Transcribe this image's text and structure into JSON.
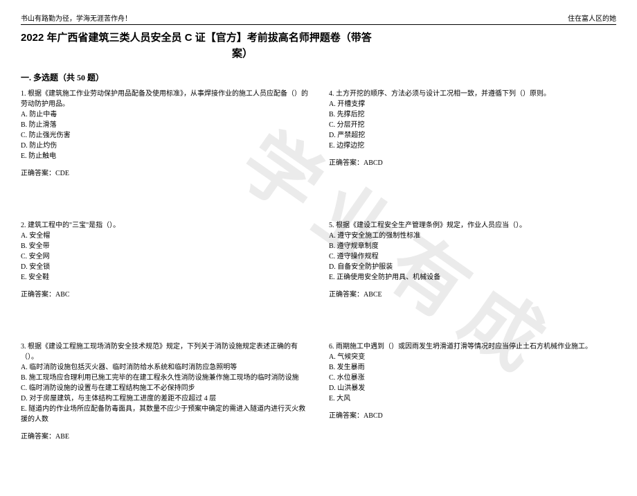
{
  "header": {
    "left": "书山有路勤为径，学海无涯苦作舟！",
    "right": "住在富人区的她"
  },
  "watermark": "学业有成",
  "title_line1": "2022 年广西省建筑三类人员安全员 C 证【官方】考前拔高名师押题卷（带答",
  "title_line2": "案）",
  "section": "一. 多选题（共 50 题）",
  "questions": [
    {
      "stem": "1. 根据《建筑施工作业劳动保护用品配备及使用标准》，从事焊接作业的施工人员应配备（）的劳动防护用品。",
      "opts": [
        "A. 防止中毒",
        "B. 防止滑落",
        "C. 防止强光伤害",
        "D. 防止灼伤",
        "E. 防止触电"
      ],
      "ans": "正确答案：CDE"
    },
    {
      "stem": "4. 土方开挖的顺序、方法必须与设计工况相一致，并遵循下列（）原则。",
      "opts": [
        "A. 开槽支撑",
        "B. 先撑后挖",
        "C. 分层开挖",
        "D. 严禁超挖",
        "E. 边撑边挖"
      ],
      "ans": "正确答案：ABCD"
    },
    {
      "stem": "2. 建筑工程中的\"三宝\"是指（）。",
      "opts": [
        "A. 安全帽",
        "B. 安全带",
        "C. 安全网",
        "D. 安全锁",
        "E. 安全鞋"
      ],
      "ans": "正确答案：ABC"
    },
    {
      "stem": "5. 根据《建设工程安全生产管理条例》规定，作业人员应当（）。",
      "opts": [
        "A. 遵守安全施工的强制性标准",
        "B. 遵守规章制度",
        "C. 遵守操作规程",
        "D. 自备安全防护服装",
        "E. 正确使用安全防护用具、机械设备"
      ],
      "ans": "正确答案：ABCE"
    },
    {
      "stem": "3. 根据《建设工程施工现场消防安全技术规范》规定，下列关于消防设施规定表述正确的有（）。",
      "opts": [
        "A. 临时消防设施包括灭火器、临时消防给水系统和临时消防应急照明等",
        "B. 施工现场应合理利用已施工完毕的在建工程永久性消防设施兼作施工现场的临时消防设施",
        "C. 临时消防设施的设置与在建工程结构施工不必保持同步",
        "D. 对于房屋建筑，与主体结构工程施工进度的差距不应超过 4 层",
        "E. 隧道内的作业场所应配备防毒面具，其数量不应少于预案中确定的需进入隧道内进行灭火救援的人数"
      ],
      "ans": "正确答案：ABE"
    },
    {
      "stem": "6. 雨期施工中遇到（）或因雨发生坍滑道打滑等情况时应当停止土石方机械作业施工。",
      "opts": [
        "A. 气候突变",
        "B. 发生暴雨",
        "C. 水位暴涨",
        "D. 山洪暴发",
        "E. 大风"
      ],
      "ans": "正确答案：ABCD"
    }
  ]
}
